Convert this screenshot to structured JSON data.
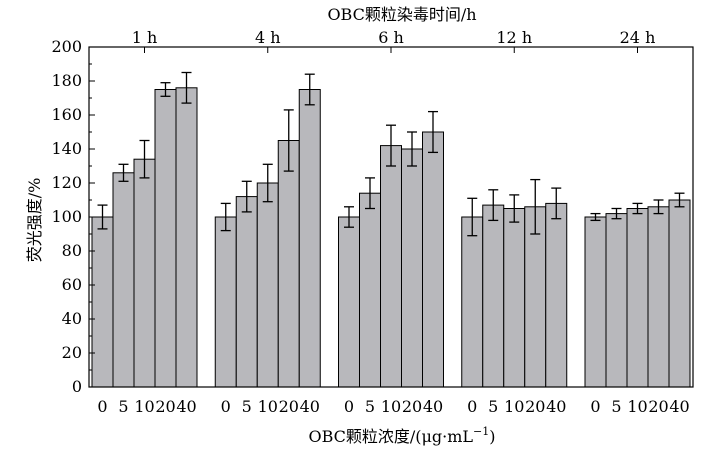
{
  "chart_data": {
    "type": "bar",
    "title": "OBC颗粒染毒时间/h",
    "xlabel": "OBC颗粒浓度/(μg·mL",
    "xlabel_sup": "−1",
    "xlabel_close": ")",
    "ylabel": "荧光强度/%",
    "ylim": [
      0,
      200
    ],
    "yticks": [
      "0",
      "20",
      "40",
      "60",
      "80",
      "100",
      "120",
      "140",
      "160",
      "180",
      "200"
    ],
    "categories": [
      "0",
      "5",
      "10",
      "20",
      "40"
    ],
    "groups": [
      {
        "label": "1 h",
        "values": [
          100,
          126,
          134,
          175,
          176
        ],
        "errors": [
          7,
          5,
          11,
          4,
          9
        ]
      },
      {
        "label": "4 h",
        "values": [
          100,
          112,
          120,
          145,
          175
        ],
        "errors": [
          8,
          9,
          11,
          18,
          9
        ]
      },
      {
        "label": "6 h",
        "values": [
          100,
          114,
          142,
          140,
          150
        ],
        "errors": [
          6,
          9,
          12,
          10,
          12
        ]
      },
      {
        "label": "12 h",
        "values": [
          100,
          107,
          105,
          106,
          108
        ],
        "errors": [
          11,
          9,
          8,
          16,
          9
        ]
      },
      {
        "label": "24 h",
        "values": [
          100,
          102,
          105,
          106,
          110
        ],
        "errors": [
          2,
          3,
          3,
          4,
          4
        ]
      }
    ],
    "grid": false,
    "legend": "none",
    "bar_color": "#b8b8bc"
  }
}
